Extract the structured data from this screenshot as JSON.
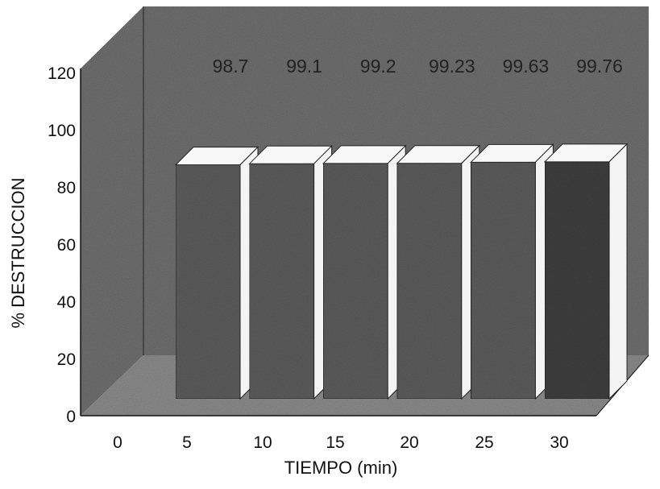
{
  "chart_data": {
    "type": "bar",
    "style": "3d",
    "categories": [
      "5",
      "10",
      "15",
      "20",
      "25",
      "30"
    ],
    "values": [
      98.7,
      99.1,
      99.2,
      99.23,
      99.63,
      99.76
    ],
    "data_labels": [
      "98.7",
      "99.1",
      "99.2",
      "99.23",
      "99.63",
      "99.76"
    ],
    "x_tick_labels": [
      "0",
      "5",
      "10",
      "15",
      "20",
      "25",
      "30"
    ],
    "y_ticks": [
      "0",
      "20",
      "40",
      "60",
      "80",
      "100",
      "120"
    ],
    "ylim": [
      0,
      120
    ],
    "xlabel": "TIEMPO (min)",
    "ylabel": "% DESTRUCCION",
    "title": "",
    "grid": false,
    "legend": "none",
    "colors": {
      "back_wall": "#6e6e6e",
      "floor": "#8a8a8a",
      "bar_front": "#5c5c5c",
      "bar_front_last": "#3e3e3e",
      "bar_side": "#f4f4f4",
      "bar_top": "#f8f8f8"
    }
  }
}
